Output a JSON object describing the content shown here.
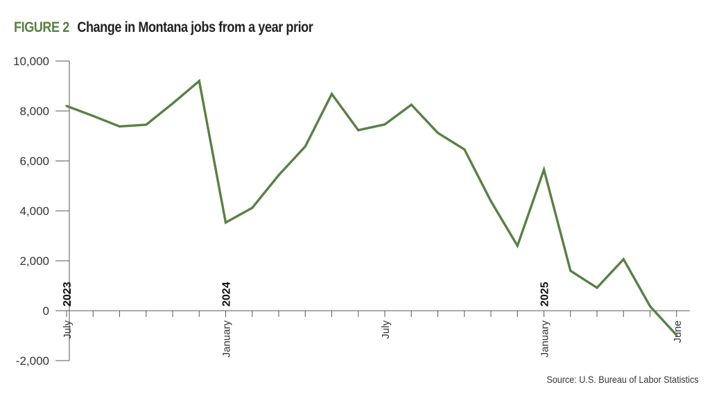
{
  "figure": {
    "label": "FIGURE 2",
    "title": "Change in Montana jobs from a year prior",
    "source": "Source: U.S. Bureau of Labor Statistics"
  },
  "colors": {
    "line": "#5a7f46",
    "label": "#5a7f46",
    "axis": "#555555",
    "text": "#333333"
  },
  "chart_data": {
    "type": "line",
    "title": "Change in Montana jobs from a year prior",
    "xlabel": "",
    "ylabel": "",
    "ylim": [
      -2000,
      10000
    ],
    "yticks": [
      10000,
      8000,
      6000,
      4000,
      2000,
      0,
      -2000
    ],
    "ytick_labels": [
      "10,000",
      "8,000",
      "6,000",
      "4,000",
      "2,000",
      "0",
      "-2,000"
    ],
    "grid": false,
    "x": [
      "2023-07",
      "2023-08",
      "2023-09",
      "2023-10",
      "2023-11",
      "2023-12",
      "2024-01",
      "2024-02",
      "2024-03",
      "2024-04",
      "2024-05",
      "2024-06",
      "2024-07",
      "2024-08",
      "2024-09",
      "2024-10",
      "2024-11",
      "2024-12",
      "2025-01",
      "2025-02",
      "2025-03",
      "2025-04",
      "2025-05",
      "2025-06"
    ],
    "series": [
      {
        "values": [
          8200,
          7800,
          7380,
          7450,
          8300,
          9200,
          3530,
          4120,
          5430,
          6580,
          8680,
          7230,
          7460,
          8250,
          7120,
          6460,
          4390,
          2600,
          5650,
          1600,
          920,
          2060,
          180,
          -980
        ]
      }
    ],
    "x_tick_labels": [
      {
        "index": 0,
        "text": "July"
      },
      {
        "index": 6,
        "text": "January"
      },
      {
        "index": 12,
        "text": "July"
      },
      {
        "index": 18,
        "text": "January"
      },
      {
        "index": 23,
        "text": "June"
      }
    ],
    "year_labels": [
      {
        "index": 0,
        "text": "2023"
      },
      {
        "index": 6,
        "text": "2024"
      },
      {
        "index": 18,
        "text": "2025"
      }
    ]
  }
}
